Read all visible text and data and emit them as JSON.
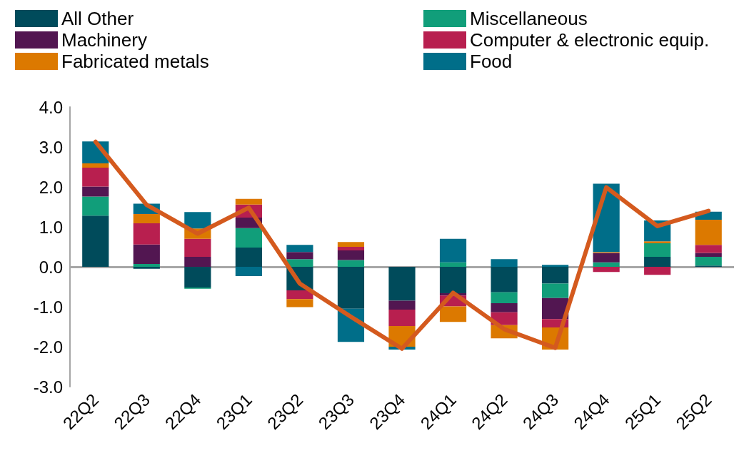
{
  "chart_data": {
    "type": "bar",
    "stacked": true,
    "categories": [
      "22Q2",
      "22Q3",
      "22Q4",
      "23Q1",
      "23Q2",
      "23Q3",
      "23Q4",
      "24Q1",
      "24Q2",
      "24Q3",
      "24Q4",
      "25Q1",
      "25Q2"
    ],
    "series": [
      {
        "name": "All Other",
        "color": "#004b5b",
        "values": [
          1.28,
          -0.05,
          -0.52,
          0.48,
          -0.59,
          -1.05,
          -0.85,
          -0.66,
          -0.64,
          -0.42,
          0,
          0.25,
          0.03
        ]
      },
      {
        "name": "Miscellaneous",
        "color": "#119e7a",
        "values": [
          0.48,
          0.07,
          -0.03,
          0.49,
          0.19,
          0.17,
          0,
          0.11,
          -0.27,
          -0.36,
          0.11,
          0.34,
          0.22
        ]
      },
      {
        "name": "Machinery",
        "color": "#521651",
        "values": [
          0.25,
          0.49,
          0.25,
          0.26,
          0.18,
          0.24,
          -0.22,
          -0.06,
          -0.23,
          -0.53,
          0.24,
          0,
          0.1
        ]
      },
      {
        "name": "Computer & electronic equip.",
        "color": "#b81f4f",
        "values": [
          0.47,
          0.53,
          0.45,
          0.33,
          -0.22,
          0.09,
          -0.41,
          -0.27,
          -0.32,
          -0.21,
          -0.13,
          -0.2,
          0.2
        ]
      },
      {
        "name": "Fabricated metals",
        "color": "#dc7900",
        "values": [
          0.11,
          0.23,
          0.26,
          0.14,
          -0.2,
          0.12,
          -0.52,
          -0.39,
          -0.33,
          -0.55,
          0.02,
          0.05,
          0.63
        ]
      },
      {
        "name": "Food",
        "color": "#006e89",
        "values": [
          0.55,
          0.26,
          0.41,
          -0.23,
          0.18,
          -0.83,
          -0.07,
          0.59,
          0.19,
          0.05,
          1.71,
          0.52,
          0.2
        ]
      },
      {
        "type": "line",
        "color": "#d45a1e",
        "values": [
          3.13,
          1.55,
          0.83,
          1.48,
          -0.42,
          -1.25,
          -2.05,
          -0.65,
          -1.56,
          -2.03,
          1.99,
          1.02,
          1.4
        ]
      }
    ],
    "ylim": [
      -3,
      4
    ],
    "yticks": [
      {
        "value": -3,
        "label": "-3.0"
      },
      {
        "value": -2,
        "label": "-2.0"
      },
      {
        "value": -1,
        "label": "-1.0"
      },
      {
        "value": 0,
        "label": "0.0"
      },
      {
        "value": 1,
        "label": "1.0"
      },
      {
        "value": 2,
        "label": "2.0"
      },
      {
        "value": 3,
        "label": "3.0"
      },
      {
        "value": 4,
        "label": "4.0"
      }
    ],
    "ref_lines": [
      {
        "axis": "y",
        "value": 0,
        "color": "#a6a6a6"
      }
    ],
    "grid": false,
    "legend": "top",
    "marker": "none",
    "line_style": "solid"
  }
}
